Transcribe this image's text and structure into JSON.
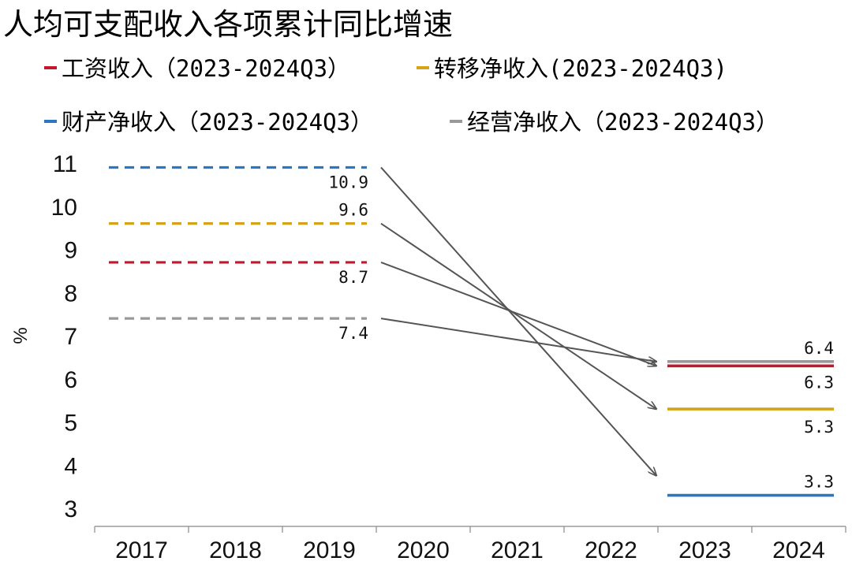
{
  "chart_data": {
    "type": "line",
    "title": "人均可支配收入各项累计同比增速",
    "ylabel": "%",
    "xlabel": "",
    "ylim": [
      3,
      11
    ],
    "yticks": [
      3,
      4,
      5,
      6,
      7,
      8,
      9,
      10,
      11
    ],
    "categories": [
      "2017",
      "2018",
      "2019",
      "2020",
      "2021",
      "2022",
      "2023",
      "2024"
    ],
    "series": [
      {
        "key": "wage",
        "name": "工资收入（2023-2024Q3）",
        "color": "#C0182C",
        "before_value": 8.7,
        "before_label": "8.7",
        "after_value": 6.3,
        "after_label": "6.3"
      },
      {
        "key": "transfer",
        "name": "转移净收入(2023-2024Q3)",
        "color": "#D4A317",
        "before_value": 9.6,
        "before_label": "9.6",
        "after_value": 5.3,
        "after_label": "5.3"
      },
      {
        "key": "property",
        "name": "财产净收入（2023-2024Q3）",
        "color": "#2E75C2",
        "before_value": 10.9,
        "before_label": "10.9",
        "after_value": 3.3,
        "after_label": "3.3"
      },
      {
        "key": "business",
        "name": "经营净收入（2023-2024Q3）",
        "color": "#999999",
        "before_value": 7.4,
        "before_label": "7.4",
        "after_value": 6.4,
        "after_label": "6.4"
      }
    ],
    "arrow_color": "#555555"
  }
}
